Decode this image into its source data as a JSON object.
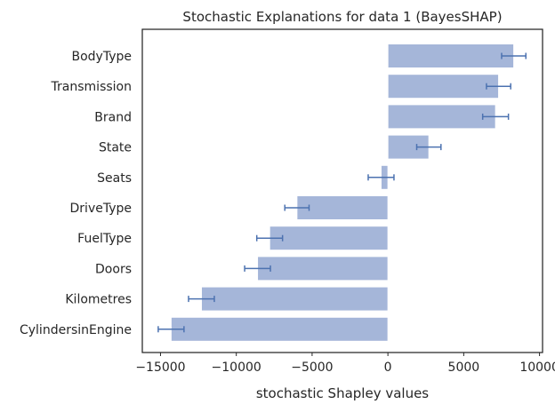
{
  "chart_data": {
    "type": "bar",
    "orientation": "horizontal",
    "title": "Stochastic Explanations for data 1 (BayesSHAP)",
    "xlabel": "stochastic Shapley values",
    "ylabel": "",
    "xlim": [
      -16200,
      10200
    ],
    "xticks": [
      -15000,
      -10000,
      -5000,
      0,
      5000,
      10000
    ],
    "xtick_labels": [
      "−15000",
      "−10000",
      "−5000",
      "0",
      "5000",
      "10000"
    ],
    "grid": false,
    "bar_color": "#a5b6d9",
    "error_color": "#4c72b0",
    "categories": [
      "BodyType",
      "Transmission",
      "Brand",
      "State",
      "Seats",
      "DriveType",
      "FuelType",
      "Doors",
      "Kilometres",
      "CylindersinEngine"
    ],
    "values": [
      8300,
      7300,
      7100,
      2700,
      -450,
      -6000,
      -7800,
      -8600,
      -12300,
      -14300
    ],
    "errors": [
      800,
      800,
      850,
      800,
      850,
      800,
      850,
      850,
      850,
      850
    ]
  }
}
